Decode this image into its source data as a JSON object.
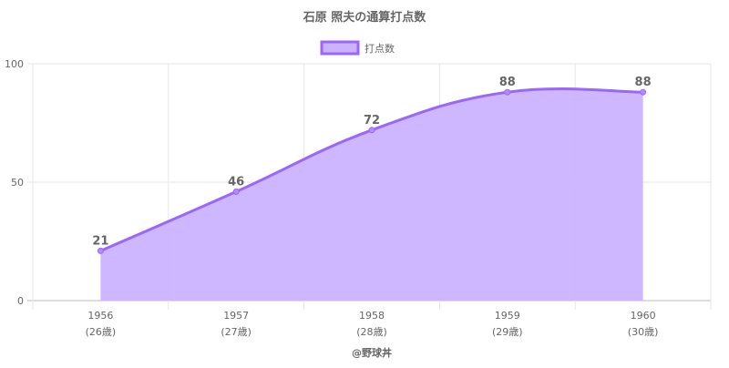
{
  "chart_data": {
    "type": "area",
    "title": "石原 照夫の通算打点数",
    "categories": [
      "1956",
      "1957",
      "1958",
      "1959",
      "1960"
    ],
    "category_sublabels": [
      "(26歳)",
      "(27歳)",
      "(28歳)",
      "(29歳)",
      "(30歳)"
    ],
    "series": [
      {
        "name": "打点数",
        "values": [
          21,
          46,
          72,
          88,
          88
        ]
      }
    ],
    "ylim": [
      0,
      100
    ],
    "yticks": [
      0,
      50,
      100
    ],
    "grid": true,
    "legend_position": "top",
    "data_labels": true,
    "colors": {
      "line": "#9966ff",
      "fill": "#ccb3ff",
      "text": "#666666",
      "grid": "#e6e6e6"
    }
  },
  "credit": "@野球丼"
}
